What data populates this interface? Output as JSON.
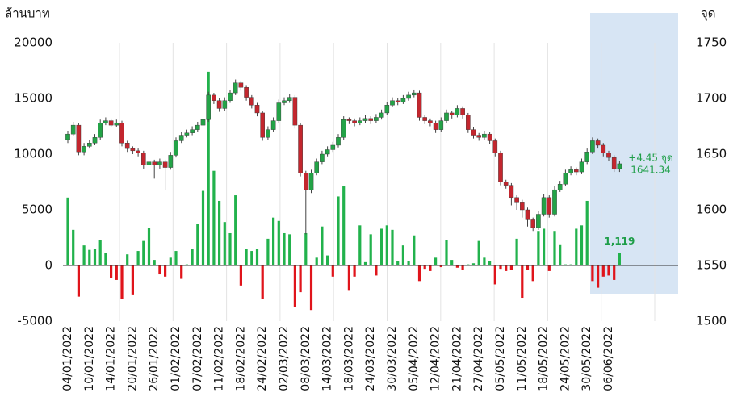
{
  "chart_data": [
    {
      "type": "bar",
      "ylabel": "ล้านบาท",
      "ylim": [
        -5000,
        20000
      ],
      "yticks": [
        -5000,
        0,
        5000,
        10000,
        15000,
        20000
      ],
      "categories": [
        "04/01/2022",
        null,
        null,
        null,
        "10/01/2022",
        null,
        null,
        null,
        "14/01/2022",
        null,
        null,
        null,
        "20/01/2022",
        null,
        null,
        null,
        "26/01/2022",
        null,
        null,
        null,
        "01/02/2022",
        null,
        null,
        null,
        "07/02/2022",
        null,
        null,
        null,
        "11/02/2022",
        null,
        null,
        null,
        "18/02/2022",
        null,
        null,
        null,
        "24/02/2022",
        null,
        null,
        null,
        "02/03/2022",
        null,
        null,
        null,
        "08/03/2022",
        null,
        null,
        null,
        "14/03/2022",
        null,
        null,
        null,
        "18/03/2022",
        null,
        null,
        null,
        "24/03/2022",
        null,
        null,
        null,
        "30/03/2022",
        null,
        null,
        null,
        "05/04/2022",
        null,
        null,
        null,
        "12/04/2022",
        null,
        null,
        null,
        "21/04/2022",
        null,
        null,
        null,
        "27/04/2022",
        null,
        null,
        null,
        "05/05/2022",
        null,
        null,
        null,
        "11/05/2022",
        null,
        null,
        null,
        "18/05/2022",
        null,
        null,
        null,
        "24/05/2022",
        null,
        null,
        null,
        "30/05/2022",
        null,
        null,
        null,
        "06/06/2022",
        null,
        null
      ],
      "series": [
        {
          "positive_color": "#22b24c",
          "negative_color": "#e0141b",
          "values": [
            6100,
            3200,
            -2800,
            1800,
            1400,
            1500,
            2300,
            1100,
            -1100,
            -1300,
            -3000,
            1000,
            -2600,
            1300,
            2200,
            3400,
            500,
            -800,
            -1000,
            700,
            1300,
            -1200,
            100,
            1500,
            3700,
            6700,
            17400,
            8500,
            5800,
            3900,
            2900,
            6300,
            -1800,
            1500,
            1300,
            1500,
            -3000,
            2400,
            4300,
            4000,
            2900,
            2800,
            -3700,
            -2400,
            2900,
            -4000,
            700,
            3500,
            900,
            -1000,
            6200,
            7100,
            -2200,
            -1000,
            3600,
            300,
            2800,
            -900,
            3300,
            3600,
            3200,
            400,
            1800,
            400,
            2700,
            -1400,
            -300,
            -500,
            700,
            -150,
            2300,
            500,
            -200,
            -400,
            100,
            200,
            2200,
            700,
            400,
            -1700,
            -300,
            -500,
            -400,
            2400,
            -2900,
            -400,
            -1400,
            3100,
            3300,
            -500,
            3100,
            1900,
            100,
            100,
            3300,
            3600,
            5800,
            -1400,
            -2000,
            -1000,
            -900,
            -1300,
            1119
          ],
          "value_labels": {
            "102": "1,119"
          }
        }
      ]
    },
    {
      "type": "candlestick",
      "ylabel": "จุด",
      "axis": "y2",
      "ylim": [
        1500,
        1750
      ],
      "yticks": [
        1500,
        1550,
        1600,
        1650,
        1700,
        1750
      ],
      "up_color": "#23a347",
      "down_color": "#c3262e",
      "open": [
        1663,
        1668,
        1676,
        1652,
        1657,
        1660,
        1665,
        1678,
        1680,
        1676,
        1678,
        1660,
        1655,
        1653,
        1651,
        1640,
        1643,
        1640,
        1643,
        1638,
        1649,
        1662,
        1667,
        1669,
        1672,
        1676,
        1681,
        1703,
        1698,
        1691,
        1698,
        1705,
        1714,
        1710,
        1701,
        1694,
        1687,
        1665,
        1672,
        1680,
        1696,
        1698,
        1701,
        1676,
        1633,
        1618,
        1633,
        1643,
        1650,
        1654,
        1658,
        1665,
        1681,
        1680,
        1678,
        1680,
        1682,
        1680,
        1683,
        1687,
        1694,
        1698,
        1697,
        1700,
        1703,
        1705,
        1683,
        1680,
        1678,
        1672,
        1680,
        1687,
        1685,
        1691,
        1685,
        1672,
        1667,
        1665,
        1668,
        1662,
        1651,
        1625,
        1622,
        1611,
        1607,
        1600,
        1591,
        1584,
        1596,
        1611,
        1596,
        1618,
        1623,
        1633,
        1636,
        1634,
        1643,
        1652,
        1662,
        1658,
        1651,
        1647,
        1636.89
      ],
      "high": [
        1671,
        1679,
        1678,
        1660,
        1663,
        1668,
        1681,
        1683,
        1682,
        1681,
        1680,
        1662,
        1657,
        1655,
        1653,
        1646,
        1645,
        1646,
        1645,
        1652,
        1665,
        1670,
        1672,
        1675,
        1679,
        1684,
        1706,
        1705,
        1700,
        1701,
        1708,
        1717,
        1716,
        1712,
        1703,
        1696,
        1689,
        1675,
        1683,
        1699,
        1701,
        1704,
        1703,
        1678,
        1635,
        1636,
        1646,
        1653,
        1657,
        1661,
        1668,
        1684,
        1683,
        1682,
        1683,
        1685,
        1684,
        1686,
        1690,
        1697,
        1701,
        1700,
        1703,
        1706,
        1708,
        1707,
        1685,
        1682,
        1680,
        1683,
        1690,
        1689,
        1694,
        1693,
        1687,
        1674,
        1669,
        1671,
        1670,
        1664,
        1653,
        1627,
        1624,
        1613,
        1609,
        1602,
        1593,
        1599,
        1614,
        1613,
        1621,
        1626,
        1636,
        1639,
        1638,
        1646,
        1655,
        1665,
        1664,
        1660,
        1653,
        1649,
        1644
      ],
      "low": [
        1660,
        1666,
        1649,
        1649,
        1655,
        1658,
        1663,
        1676,
        1674,
        1674,
        1657,
        1652,
        1650,
        1648,
        1637,
        1637,
        1628,
        1637,
        1618,
        1636,
        1647,
        1660,
        1665,
        1667,
        1670,
        1674,
        1679,
        1695,
        1688,
        1689,
        1696,
        1703,
        1707,
        1698,
        1691,
        1684,
        1662,
        1663,
        1670,
        1678,
        1694,
        1696,
        1673,
        1630,
        1578,
        1615,
        1631,
        1641,
        1648,
        1652,
        1656,
        1663,
        1677,
        1675,
        1676,
        1678,
        1677,
        1678,
        1681,
        1685,
        1692,
        1694,
        1695,
        1698,
        1701,
        1680,
        1677,
        1675,
        1669,
        1670,
        1678,
        1682,
        1683,
        1682,
        1669,
        1664,
        1662,
        1663,
        1659,
        1648,
        1622,
        1619,
        1604,
        1600,
        1593,
        1585,
        1581,
        1582,
        1594,
        1593,
        1594,
        1616,
        1621,
        1631,
        1631,
        1632,
        1641,
        1650,
        1655,
        1648,
        1644,
        1634,
        1634
      ],
      "close": [
        1668,
        1676,
        1652,
        1657,
        1660,
        1665,
        1678,
        1680,
        1676,
        1678,
        1660,
        1655,
        1653,
        1651,
        1640,
        1643,
        1640,
        1643,
        1638,
        1649,
        1662,
        1667,
        1669,
        1672,
        1676,
        1681,
        1703,
        1698,
        1691,
        1698,
        1705,
        1714,
        1710,
        1701,
        1694,
        1687,
        1665,
        1672,
        1680,
        1696,
        1698,
        1701,
        1676,
        1633,
        1618,
        1633,
        1643,
        1650,
        1654,
        1658,
        1665,
        1681,
        1680,
        1678,
        1680,
        1682,
        1680,
        1683,
        1687,
        1694,
        1698,
        1697,
        1700,
        1703,
        1705,
        1683,
        1680,
        1678,
        1672,
        1680,
        1687,
        1685,
        1691,
        1685,
        1672,
        1667,
        1665,
        1668,
        1662,
        1651,
        1625,
        1622,
        1611,
        1607,
        1600,
        1591,
        1584,
        1596,
        1611,
        1596,
        1618,
        1623,
        1633,
        1636,
        1634,
        1643,
        1652,
        1662,
        1658,
        1651,
        1647,
        1636.89,
        1641.34
      ],
      "annotations": [
        "+4.45 จุด",
        "1641.34"
      ]
    }
  ]
}
